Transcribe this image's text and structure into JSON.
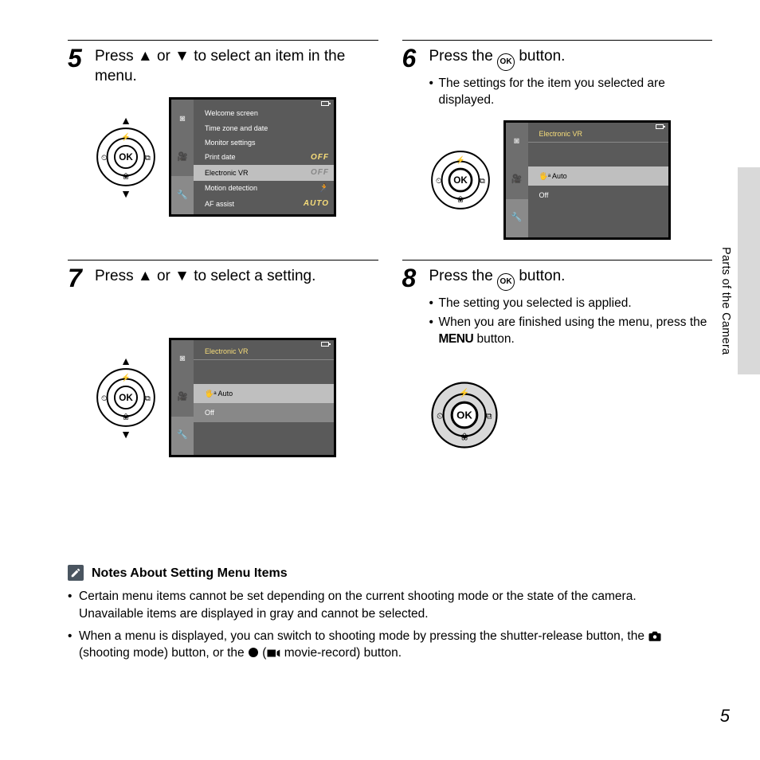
{
  "section_label": "Parts of the Camera",
  "page_number": "5",
  "steps": {
    "s5": {
      "num": "5",
      "text_a": "Press ",
      "text_b": " or ",
      "text_c": " to select an item in the menu."
    },
    "s6": {
      "num": "6",
      "text_a": "Press the ",
      "text_b": " button.",
      "bullets": [
        "The settings for the item you selected are displayed."
      ]
    },
    "s7": {
      "num": "7",
      "text_a": "Press ",
      "text_b": " or ",
      "text_c": " to select a setting."
    },
    "s8": {
      "num": "8",
      "text_a": "Press the ",
      "text_b": " button.",
      "bullets": [
        "The setting you selected is applied.",
        "When you are finished using the menu, press the MENU button."
      ],
      "bullet2_a": "When you are finished using the menu, press the ",
      "bullet2_b": " button."
    }
  },
  "menu_word": "MENU",
  "ok_label": "OK",
  "lcd1": {
    "header": null,
    "rows": [
      {
        "label": "Welcome screen",
        "val": ""
      },
      {
        "label": "Time zone and date",
        "val": ""
      },
      {
        "label": "Monitor settings",
        "val": ""
      },
      {
        "label": "Print date",
        "val": "OFF"
      },
      {
        "label": "Electronic VR",
        "val": "OFF",
        "sel": true
      },
      {
        "label": "Motion detection",
        "val": "🏃"
      },
      {
        "label": "AF assist",
        "val": "AUTO"
      }
    ]
  },
  "lcd2": {
    "header": "Electronic VR",
    "rows": [
      {
        "label": "🖐ᵃ Auto",
        "val": "",
        "sel": true
      },
      {
        "label": "   Off",
        "val": ""
      }
    ]
  },
  "notes": {
    "title": "Notes About Setting Menu Items",
    "b1": "Certain menu items cannot be set depending on the current shooting mode or the state of the camera. Unavailable items are displayed in gray and cannot be selected.",
    "b2_a": "When a menu is displayed, you can switch to shooting mode by pressing the shutter-release button, the ",
    "b2_b": " (shooting mode) button, or the ",
    "b2_c": " (",
    "b2_d": " movie-record) button."
  },
  "colors": {
    "lcd_bg": "#5a5a5a",
    "lcd_side": "#6e6e6e",
    "lcd_sel": "#bfbfbf",
    "lcd_yellow": "#f7dd7a",
    "sidetab": "#d9d9d9",
    "pencil_bg": "#4a5560"
  }
}
